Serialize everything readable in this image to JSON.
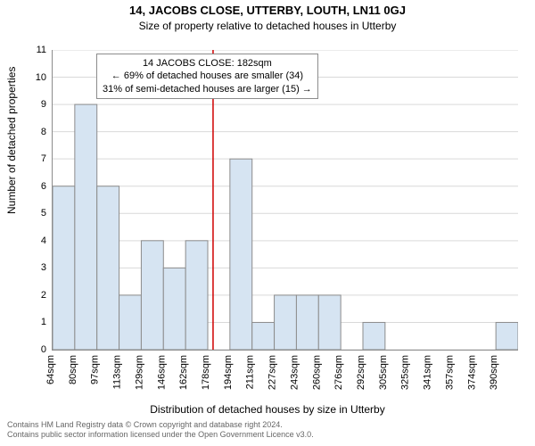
{
  "title": "14, JACOBS CLOSE, UTTERBY, LOUTH, LN11 0GJ",
  "subtitle": "Size of property relative to detached houses in Utterby",
  "ylabel": "Number of detached properties",
  "xlabel": "Distribution of detached houses by size in Utterby",
  "footer1": "Contains HM Land Registry data © Crown copyright and database right 2024.",
  "footer2": "Contains public sector information licensed under the Open Government Licence v3.0.",
  "chart": {
    "type": "histogram",
    "ylim": [
      0,
      11
    ],
    "ytick_step": 1,
    "y_gridline_color": "#d9d9d9",
    "axis_color": "#8c8c8c",
    "bar_fill": "#d6e4f2",
    "bar_stroke": "#8c8c8c",
    "refline_color": "#d00000",
    "refline_x": 182,
    "categories": [
      "64sqm",
      "80sqm",
      "97sqm",
      "113sqm",
      "129sqm",
      "146sqm",
      "162sqm",
      "178sqm",
      "194sqm",
      "211sqm",
      "227sqm",
      "243sqm",
      "260sqm",
      "276sqm",
      "292sqm",
      "305sqm",
      "325sqm",
      "341sqm",
      "357sqm",
      "374sqm",
      "390sqm"
    ],
    "values": [
      6,
      9,
      6,
      2,
      4,
      3,
      4,
      0,
      7,
      1,
      2,
      2,
      2,
      0,
      1,
      0,
      0,
      0,
      0,
      0,
      1
    ],
    "bar_width_ratio": 1.0
  },
  "infobox": {
    "l1": "14 JACOBS CLOSE: 182sqm",
    "l2": "← 69% of detached houses are smaller (34)",
    "l3": "31% of semi-detached houses are larger (15) →"
  }
}
